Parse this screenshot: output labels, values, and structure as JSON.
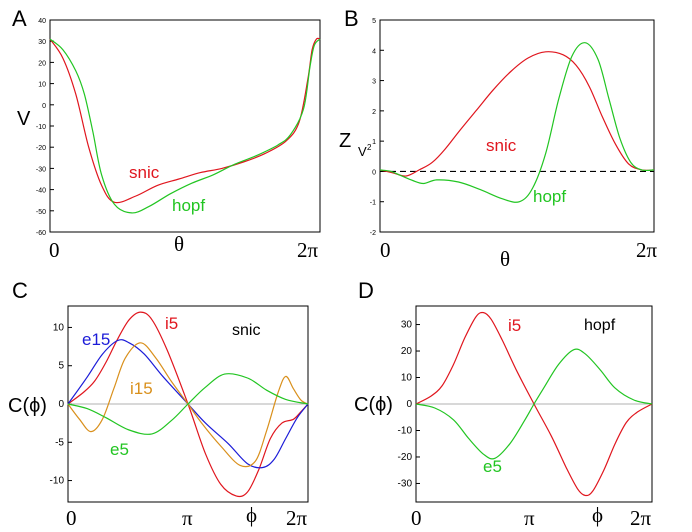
{
  "colors": {
    "snic": "#e0161e",
    "hopf": "#22c522",
    "e15": "#1c1cd8",
    "i15": "#d9901c",
    "axis": "#000000",
    "zero": "#999999"
  },
  "chart_data": [
    {
      "id": "A",
      "panel": "A",
      "type": "line",
      "ylabel": "V",
      "xlabel": "θ",
      "x_ticks": [
        "0",
        "2π"
      ],
      "xlim": [
        0,
        6.2832
      ],
      "ylim": [
        -60,
        40
      ],
      "y_ticks": [
        "40",
        "30",
        "20",
        "10",
        "0",
        "-10",
        "-20",
        "-30",
        "-40",
        "-50",
        "-60"
      ],
      "annotations": [
        {
          "text": "snic",
          "series": "snic"
        },
        {
          "text": "hopf",
          "series": "hopf"
        }
      ],
      "series": [
        {
          "name": "snic",
          "color_key": "snic",
          "x": [
            0,
            0.3,
            0.6,
            0.9,
            1.2,
            1.5,
            2.0,
            2.5,
            3.0,
            3.5,
            4.0,
            4.5,
            5.0,
            5.5,
            5.8,
            6.0,
            6.1,
            6.2,
            6.2832
          ],
          "y": [
            31,
            22,
            5,
            -20,
            -38,
            -46,
            -43,
            -38,
            -35,
            -32,
            -30,
            -27,
            -23,
            -17,
            -8,
            12,
            26,
            31,
            31
          ]
        },
        {
          "name": "hopf",
          "color_key": "hopf",
          "x": [
            0,
            0.3,
            0.6,
            0.8,
            1.0,
            1.2,
            1.5,
            1.9,
            2.3,
            2.8,
            3.3,
            3.8,
            4.3,
            4.8,
            5.3,
            5.6,
            5.9,
            6.05,
            6.15,
            6.2832
          ],
          "y": [
            31,
            26,
            16,
            5,
            -13,
            -33,
            -47,
            -51,
            -48,
            -42,
            -37,
            -33,
            -28,
            -24,
            -19,
            -14,
            -2,
            18,
            28,
            31
          ]
        }
      ]
    },
    {
      "id": "B",
      "panel": "B",
      "type": "line",
      "ylabel": "Z",
      "ylabel_sub": "V",
      "ylabel_sup": "2",
      "xlabel": "θ",
      "x_ticks": [
        "0",
        "2π"
      ],
      "xlim": [
        0,
        6.2832
      ],
      "ylim": [
        -2,
        5
      ],
      "y_ticks": [
        "5",
        "4",
        "3",
        "2",
        "1",
        "0",
        "-1",
        "-2"
      ],
      "zero_line": "dashed",
      "annotations": [
        {
          "text": "snic",
          "series": "snic"
        },
        {
          "text": "hopf",
          "series": "hopf"
        }
      ],
      "series": [
        {
          "name": "snic",
          "color_key": "snic",
          "x": [
            0,
            0.3,
            0.6,
            0.9,
            1.2,
            1.5,
            1.8,
            2.2,
            2.6,
            3.0,
            3.4,
            3.8,
            4.2,
            4.5,
            4.8,
            5.1,
            5.4,
            5.7,
            6.0,
            6.2832
          ],
          "y": [
            0.05,
            -0.05,
            -0.15,
            0.05,
            0.3,
            0.75,
            1.3,
            2.0,
            2.7,
            3.3,
            3.75,
            3.95,
            3.85,
            3.5,
            2.8,
            1.8,
            0.9,
            0.25,
            0.05,
            0.05
          ]
        },
        {
          "name": "hopf",
          "color_key": "hopf",
          "x": [
            0,
            0.25,
            0.5,
            0.75,
            1.0,
            1.3,
            1.8,
            2.3,
            2.8,
            3.2,
            3.5,
            3.8,
            4.1,
            4.4,
            4.7,
            5.0,
            5.25,
            5.5,
            5.75,
            6.0,
            6.2832
          ],
          "y": [
            0.05,
            0.0,
            -0.15,
            -0.3,
            -0.4,
            -0.28,
            -0.35,
            -0.6,
            -0.9,
            -1.0,
            -0.55,
            0.6,
            2.4,
            3.8,
            4.25,
            3.7,
            2.4,
            1.1,
            0.3,
            0.05,
            0.05
          ]
        }
      ]
    },
    {
      "id": "C",
      "panel": "C",
      "type": "line",
      "ylabel": "C(ϕ)",
      "xlabel": "ϕ",
      "x_ticks": [
        "0",
        "π",
        "2π"
      ],
      "xlim": [
        0,
        6.2832
      ],
      "ylim": [
        -12.8,
        12.8
      ],
      "y_ticks": [
        "10",
        "5",
        "0",
        "-5",
        "-10"
      ],
      "y_tick_values": [
        10,
        5,
        0,
        -5,
        -10
      ],
      "zero_line": "solid-gray",
      "model_label": "snic",
      "annotations": [
        {
          "text": "i5",
          "series": "i5"
        },
        {
          "text": "e15",
          "series": "e15"
        },
        {
          "text": "i15",
          "series": "i15"
        },
        {
          "text": "e5",
          "series": "e5"
        }
      ],
      "series": [
        {
          "name": "i5",
          "color_key": "snic",
          "x": [
            0,
            0.4,
            0.7,
            1.0,
            1.3,
            1.6,
            1.9,
            2.2,
            2.6,
            3.1416,
            3.6,
            4.0,
            4.4,
            4.7,
            5.0,
            5.3,
            5.6,
            5.9,
            6.1,
            6.2832
          ],
          "y": [
            0,
            1.5,
            3.0,
            5.5,
            8.5,
            11.0,
            12.0,
            11.0,
            7.0,
            0,
            -6.5,
            -10.5,
            -12.0,
            -11.5,
            -8.5,
            -4.5,
            -2.5,
            -2.0,
            -1.0,
            0
          ]
        },
        {
          "name": "e15",
          "color_key": "e15",
          "x": [
            0,
            0.5,
            0.9,
            1.3,
            1.6,
            2.0,
            2.5,
            3.1416,
            3.6,
            4.2,
            4.7,
            5.1,
            5.4,
            5.7,
            6.0,
            6.2832
          ],
          "y": [
            0,
            3.5,
            6.5,
            8.3,
            8.0,
            6.5,
            3.5,
            0,
            -2.5,
            -5.2,
            -7.8,
            -8.3,
            -7.2,
            -4.5,
            -1.8,
            0
          ]
        },
        {
          "name": "i15",
          "color_key": "i15",
          "x": [
            0,
            0.3,
            0.6,
            0.9,
            1.2,
            1.5,
            1.9,
            2.3,
            2.7,
            3.1416,
            3.5,
            4.0,
            4.5,
            4.9,
            5.2,
            5.5,
            5.7,
            5.9,
            6.1,
            6.2832
          ],
          "y": [
            0,
            -2.0,
            -3.6,
            -2.0,
            2.0,
            6.0,
            8.0,
            6.0,
            3.0,
            0,
            -2.5,
            -5.5,
            -8.0,
            -7.5,
            -3.5,
            1.5,
            3.6,
            2.0,
            0.5,
            0
          ]
        },
        {
          "name": "e5",
          "color_key": "hopf",
          "x": [
            0,
            0.5,
            1.0,
            1.6,
            2.2,
            2.7,
            3.1416,
            3.6,
            4.1,
            4.7,
            5.2,
            5.7,
            6.2832
          ],
          "y": [
            0,
            -0.6,
            -1.8,
            -3.4,
            -3.9,
            -2.2,
            0,
            2.2,
            3.9,
            3.4,
            1.8,
            0.6,
            0
          ]
        },
        {
          "name": "snic-zero",
          "color_key": "zero",
          "x": [
            0,
            6.2832
          ],
          "y": [
            0,
            0
          ]
        }
      ]
    },
    {
      "id": "D",
      "panel": "D",
      "type": "line",
      "ylabel": "C(ϕ)",
      "xlabel": "ϕ",
      "x_ticks": [
        "0",
        "π",
        "2π"
      ],
      "xlim": [
        0,
        6.2832
      ],
      "ylim": [
        -37,
        37
      ],
      "y_ticks": [
        "30",
        "20",
        "10",
        "0",
        "-10",
        "-20",
        "-30"
      ],
      "y_tick_values": [
        30,
        20,
        10,
        0,
        -10,
        -20,
        -30
      ],
      "zero_line": "solid-gray",
      "model_label": "hopf",
      "annotations": [
        {
          "text": "i5",
          "series": "i5"
        },
        {
          "text": "e5",
          "series": "e5"
        }
      ],
      "series": [
        {
          "name": "i5",
          "color_key": "snic",
          "x": [
            0,
            0.4,
            0.7,
            1.0,
            1.3,
            1.6,
            1.8,
            2.0,
            2.3,
            2.7,
            3.1416,
            3.6,
            4.0,
            4.3,
            4.5,
            4.7,
            5.0,
            5.3,
            5.6,
            5.9,
            6.2832
          ],
          "y": [
            0,
            3,
            7,
            15,
            25,
            33,
            34.5,
            32,
            24,
            12,
            0,
            -12,
            -24,
            -32,
            -34.5,
            -33,
            -25,
            -15,
            -7,
            -3,
            0
          ]
        },
        {
          "name": "e5",
          "color_key": "hopf",
          "x": [
            0,
            0.5,
            1.0,
            1.4,
            1.8,
            2.1,
            2.5,
            2.9,
            3.1416,
            3.4,
            3.8,
            4.2,
            4.5,
            4.9,
            5.3,
            5.8,
            6.2832
          ],
          "y": [
            0,
            -1.5,
            -6,
            -13,
            -19,
            -20.5,
            -15,
            -6,
            0,
            6,
            15,
            20.5,
            19,
            13,
            6,
            1.5,
            0
          ]
        }
      ]
    }
  ]
}
